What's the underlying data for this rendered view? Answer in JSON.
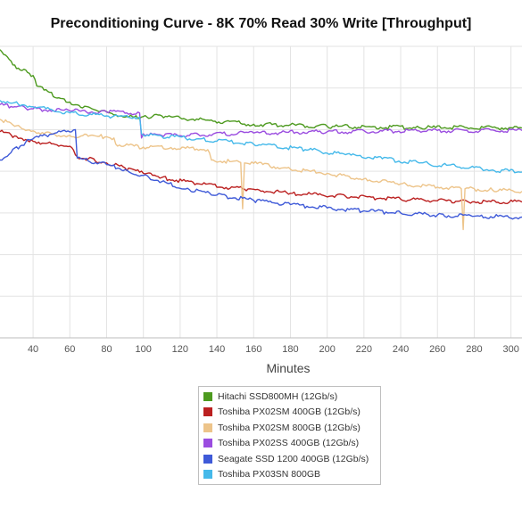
{
  "chart_data": {
    "type": "line",
    "title": "Preconditioning Curve - 8K 70% Read 30% Write [Throughput]",
    "xlabel": "Minutes",
    "ylabel": "",
    "xlim": [
      22,
      306
    ],
    "x_ticks": [
      40,
      60,
      80,
      100,
      120,
      140,
      160,
      180,
      200,
      220,
      240,
      260,
      280,
      300
    ],
    "ylim": [
      0,
      7
    ],
    "grid": true,
    "legend_position": "bottom",
    "series": [
      {
        "name": "Hitachi SSD800MH (12Gb/s)",
        "color": "#4d9a1f",
        "points": [
          [
            22,
            6.92
          ],
          [
            26,
            6.75
          ],
          [
            30,
            6.55
          ],
          [
            34,
            6.42
          ],
          [
            38,
            6.35
          ],
          [
            40,
            6.3
          ],
          [
            42,
            6.05
          ],
          [
            46,
            5.95
          ],
          [
            55,
            5.75
          ],
          [
            65,
            5.58
          ],
          [
            75,
            5.45
          ],
          [
            85,
            5.36
          ],
          [
            95,
            5.3
          ],
          [
            98,
            5.27
          ],
          [
            102,
            5.3
          ],
          [
            110,
            5.33
          ],
          [
            130,
            5.24
          ],
          [
            160,
            5.13
          ],
          [
            200,
            5.08
          ],
          [
            250,
            5.05
          ],
          [
            306,
            5.04
          ]
        ]
      },
      {
        "name": "Toshiba PX02SM 400GB (12Gb/s)",
        "color": "#bb2020",
        "points": [
          [
            22,
            4.95
          ],
          [
            30,
            4.85
          ],
          [
            40,
            4.72
          ],
          [
            50,
            4.66
          ],
          [
            60,
            4.6
          ],
          [
            64,
            4.35
          ],
          [
            70,
            4.3
          ],
          [
            80,
            4.2
          ],
          [
            90,
            4.08
          ],
          [
            100,
            3.95
          ],
          [
            110,
            3.85
          ],
          [
            130,
            3.7
          ],
          [
            155,
            3.57
          ],
          [
            180,
            3.47
          ],
          [
            210,
            3.4
          ],
          [
            240,
            3.33
          ],
          [
            270,
            3.28
          ],
          [
            306,
            3.26
          ]
        ]
      },
      {
        "name": "Toshiba PX02SM 800GB (12Gb/s)",
        "color": "#edc48a",
        "points": [
          [
            22,
            5.25
          ],
          [
            30,
            5.08
          ],
          [
            40,
            4.97
          ],
          [
            50,
            4.9
          ],
          [
            60,
            4.86
          ],
          [
            70,
            4.84
          ],
          [
            80,
            4.83
          ],
          [
            84,
            4.8
          ],
          [
            85,
            4.65
          ],
          [
            100,
            4.58
          ],
          [
            115,
            4.57
          ],
          [
            135,
            4.52
          ],
          [
            137,
            4.27
          ],
          [
            153,
            4.21
          ],
          [
            154,
            3.1
          ],
          [
            155,
            4.2
          ],
          [
            160,
            4.19
          ],
          [
            180,
            4.05
          ],
          [
            200,
            3.95
          ],
          [
            220,
            3.82
          ],
          [
            240,
            3.7
          ],
          [
            260,
            3.62
          ],
          [
            273,
            3.58
          ],
          [
            274,
            2.6
          ],
          [
            275,
            3.58
          ],
          [
            290,
            3.55
          ],
          [
            306,
            3.52
          ]
        ]
      },
      {
        "name": "Toshiba PX02SS 400GB (12Gb/s)",
        "color": "#9b4de0",
        "points": [
          [
            22,
            5.6
          ],
          [
            30,
            5.55
          ],
          [
            40,
            5.5
          ],
          [
            60,
            5.45
          ],
          [
            80,
            5.42
          ],
          [
            98,
            5.4
          ],
          [
            99,
            4.8
          ],
          [
            100,
            4.9
          ],
          [
            110,
            4.86
          ],
          [
            130,
            4.88
          ],
          [
            160,
            4.92
          ],
          [
            200,
            4.95
          ],
          [
            250,
            4.97
          ],
          [
            306,
            4.98
          ]
        ]
      },
      {
        "name": "Seagate SSD 1200 400GB (12Gb/s)",
        "color": "#3f5ad8",
        "points": [
          [
            22,
            4.27
          ],
          [
            28,
            4.45
          ],
          [
            36,
            4.7
          ],
          [
            45,
            4.85
          ],
          [
            55,
            4.95
          ],
          [
            63,
            5.0
          ],
          [
            64,
            4.32
          ],
          [
            70,
            4.25
          ],
          [
            80,
            4.16
          ],
          [
            90,
            4.04
          ],
          [
            100,
            3.9
          ],
          [
            110,
            3.75
          ],
          [
            125,
            3.56
          ],
          [
            140,
            3.43
          ],
          [
            160,
            3.3
          ],
          [
            180,
            3.2
          ],
          [
            200,
            3.12
          ],
          [
            220,
            3.05
          ],
          [
            240,
            3.0
          ],
          [
            260,
            2.95
          ],
          [
            280,
            2.92
          ],
          [
            306,
            2.9
          ]
        ]
      },
      {
        "name": "Toshiba PX03SN 800GB",
        "color": "#45b9ea",
        "points": [
          [
            22,
            5.7
          ],
          [
            30,
            5.65
          ],
          [
            40,
            5.55
          ],
          [
            60,
            5.4
          ],
          [
            80,
            5.33
          ],
          [
            98,
            5.3
          ],
          [
            99,
            4.9
          ],
          [
            110,
            4.84
          ],
          [
            130,
            4.78
          ],
          [
            160,
            4.65
          ],
          [
            190,
            4.52
          ],
          [
            210,
            4.4
          ],
          [
            230,
            4.3
          ],
          [
            250,
            4.2
          ],
          [
            270,
            4.12
          ],
          [
            290,
            4.03
          ],
          [
            306,
            3.98
          ]
        ]
      }
    ]
  }
}
